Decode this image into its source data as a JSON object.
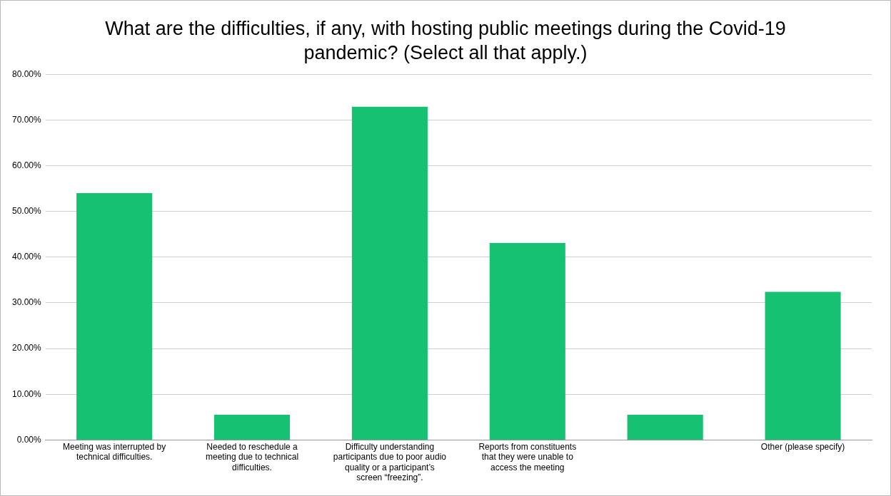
{
  "chart_data": {
    "type": "bar",
    "title": "What are the difficulties, if any, with hosting public meetings during the Covid-19 pandemic? (Select all that apply.)",
    "categories": [
      "Meeting was interrupted by technical difficulties.",
      "Needed to reschedule a meeting due to technical difficulties.",
      "Difficulty understanding participants due to poor audio quality or a participant’s screen “freezing”.",
      "Reports from constituents that they were unable to access the meeting",
      null,
      "Other (please specify)"
    ],
    "values": [
      54.0,
      5.5,
      72.9,
      43.1,
      5.5,
      32.4
    ],
    "color": "#16c172",
    "ylim": [
      0,
      80
    ],
    "yticks": [
      {
        "value": 0,
        "label": "0.00%"
      },
      {
        "value": 10,
        "label": "10.00%"
      },
      {
        "value": 20,
        "label": "20.00%"
      },
      {
        "value": 30,
        "label": "30.00%"
      },
      {
        "value": 40,
        "label": "40.00%"
      },
      {
        "value": 50,
        "label": "50.00%"
      },
      {
        "value": 60,
        "label": "60.00%"
      },
      {
        "value": 70,
        "label": "70.00%"
      },
      {
        "value": 80,
        "label": "80.00%"
      }
    ],
    "grid": "y",
    "legend": false
  }
}
